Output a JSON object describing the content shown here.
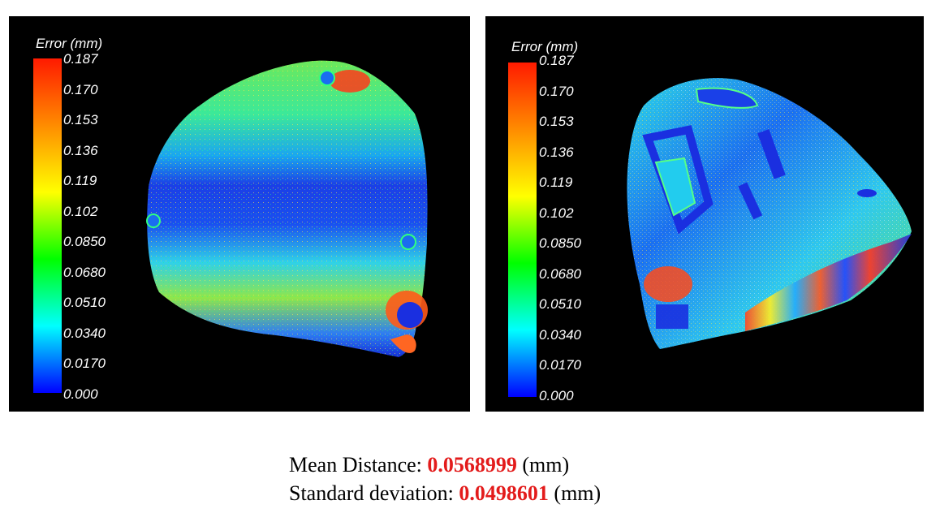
{
  "figures": [
    {
      "legend_title": "Error (mm)",
      "ticks": [
        "0.187",
        "0.170",
        "0.153",
        "0.136",
        "0.119",
        "0.102",
        "0.0850",
        "0.0680",
        "0.0510",
        "0.0340",
        "0.0170",
        "0.000"
      ]
    },
    {
      "legend_title": "Error (mm)",
      "ticks": [
        "0.187",
        "0.170",
        "0.153",
        "0.136",
        "0.119",
        "0.102",
        "0.0850",
        "0.0680",
        "0.0510",
        "0.0340",
        "0.0170",
        "0.000"
      ]
    }
  ],
  "colorscale": [
    "#ff1a00",
    "#ff8c00",
    "#ffff00",
    "#00ff00",
    "#00ffff",
    "#0000ff"
  ],
  "stats": {
    "mean_label": "Mean Distance: ",
    "mean_value": "0.0568999",
    "mean_unit": " (mm)",
    "std_label": "Standard deviation: ",
    "std_value": "0.0498601",
    "std_unit": " (mm)"
  }
}
